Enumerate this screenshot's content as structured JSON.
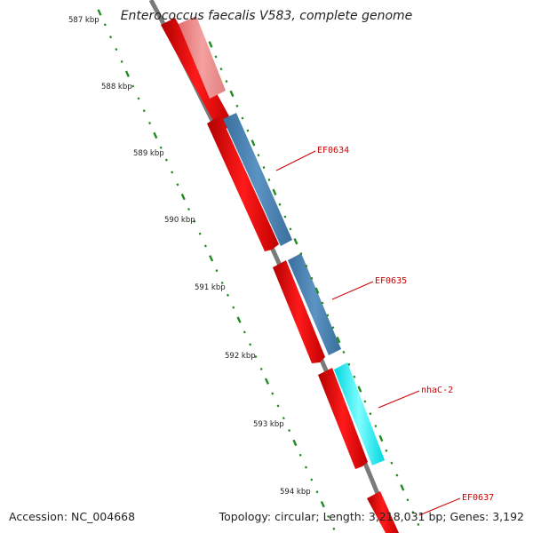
{
  "title": "Enterococcus faecalis V583, complete genome",
  "accession_text": "Accession: NC_004668",
  "summary_text": "Topology: circular; Length: 3,218,031 bp; Genes: 3,192",
  "ruler": {
    "tick_labels": [
      "587 kbp",
      "588 kbp",
      "589 kbp",
      "590 kbp",
      "591 kbp",
      "592 kbp",
      "593 kbp",
      "594 kbp"
    ]
  },
  "features": {
    "labels": [
      "EF0634",
      "EF0635",
      "nhaC-2",
      "EF0637"
    ]
  },
  "colors": {
    "forward_cds": "#ff0000",
    "faded_cds": "#f08080",
    "blue_track": "#4a86b8",
    "cyan_track": "#00ffff",
    "tick_green": "#228b22",
    "backbone": "#808080",
    "label_red": "#cc0000"
  }
}
